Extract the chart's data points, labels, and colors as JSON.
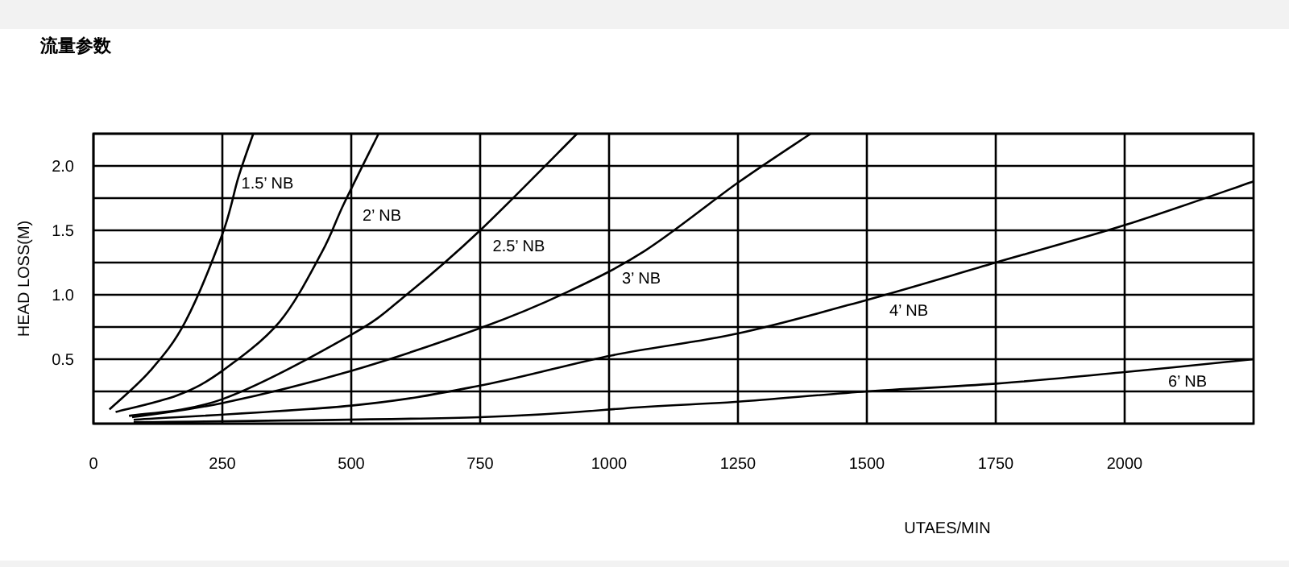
{
  "chart_data": {
    "type": "line",
    "title": "流量参数",
    "xlabel": "UTAES/MIN",
    "ylabel": "HEAD LOSS(M)",
    "xlim": [
      0,
      2250
    ],
    "ylim": [
      0,
      2.25
    ],
    "xticks": [
      0,
      250,
      500,
      750,
      1000,
      1250,
      1500,
      1750,
      2000
    ],
    "yticks": [
      {
        "value": 0,
        "label": null
      },
      {
        "value": 0.25,
        "label": null
      },
      0.5,
      {
        "value": 0.75,
        "label": null
      },
      {
        "value": 1,
        "label": "1.0"
      },
      {
        "value": 1.25,
        "label": null
      },
      1.5,
      {
        "value": 1.75,
        "label": null
      },
      {
        "value": 2,
        "label": "2.0"
      },
      {
        "value": 2.25,
        "label": null
      }
    ],
    "grid": true,
    "marker": "none",
    "line_style": "solid",
    "series": [
      {
        "name": "1.5’ NB",
        "color": "#000000",
        "x": [
          31,
          110,
          178,
          250,
          281,
          310
        ],
        "values": [
          0.11,
          0.41,
          0.79,
          1.47,
          1.91,
          2.25
        ]
      },
      {
        "name": "2’ NB",
        "color": "#000000",
        "x": [
          43,
          163,
          250,
          361,
          443,
          485,
          553
        ],
        "values": [
          0.09,
          0.22,
          0.41,
          0.79,
          1.33,
          1.7,
          2.25
        ]
      },
      {
        "name": "2.5’ NB",
        "color": "#000000",
        "x": [
          69,
          250,
          500,
          610,
          750,
          938
        ],
        "values": [
          0.06,
          0.19,
          0.69,
          1.01,
          1.5,
          2.25
        ]
      },
      {
        "name": "3’ NB",
        "color": "#000000",
        "x": [
          75,
          250,
          500,
          756,
          913,
          1069,
          1250,
          1391
        ],
        "values": [
          0.05,
          0.16,
          0.41,
          0.75,
          1.01,
          1.34,
          1.87,
          2.25
        ]
      },
      {
        "name": "4’ NB",
        "color": "#000000",
        "x": [
          78,
          500,
          756,
          1006,
          1250,
          1500,
          1750,
          2000,
          2250
        ],
        "values": [
          0.03,
          0.14,
          0.3,
          0.53,
          0.7,
          0.96,
          1.25,
          1.54,
          1.88
        ]
      },
      {
        "name": "6’ NB",
        "color": "#000000",
        "x": [
          78,
          750,
          1069,
          1250,
          1500,
          1750,
          2000,
          2250
        ],
        "values": [
          0.01,
          0.05,
          0.13,
          0.17,
          0.25,
          0.31,
          0.4,
          0.5
        ]
      }
    ]
  }
}
